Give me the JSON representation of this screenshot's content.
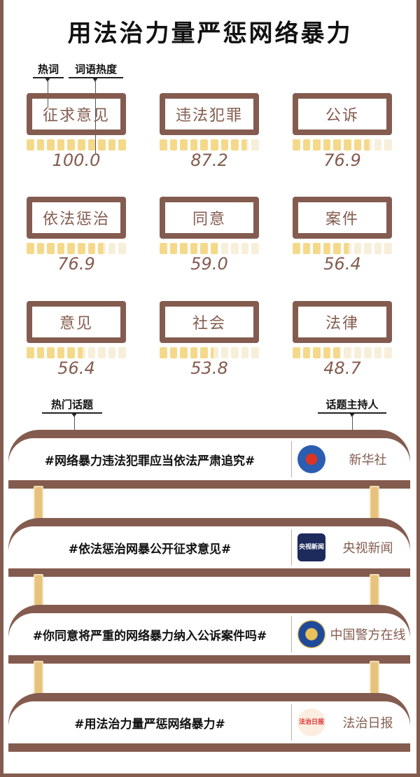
{
  "title": "用法治力量严惩网络暴力",
  "labels": {
    "hot_word": "热词",
    "word_heat": "词语热度",
    "hot_topics": "热门话题",
    "topic_host": "话题主持人"
  },
  "colors": {
    "brown": "#845c4f",
    "bar_filled": "#f5d98a",
    "bar_empty": "#f7efd9"
  },
  "keywords": [
    {
      "word": "征求意见",
      "heat": "100.0",
      "value": 100.0
    },
    {
      "word": "违法犯罪",
      "heat": "87.2",
      "value": 87.2
    },
    {
      "word": "公诉",
      "heat": "76.9",
      "value": 76.9
    },
    {
      "word": "依法惩治",
      "heat": "76.9",
      "value": 76.9
    },
    {
      "word": "同意",
      "heat": "59.0",
      "value": 59.0
    },
    {
      "word": "案件",
      "heat": "56.4",
      "value": 56.4
    },
    {
      "word": "意见",
      "heat": "56.4",
      "value": 56.4
    },
    {
      "word": "社会",
      "heat": "53.8",
      "value": 53.8
    },
    {
      "word": "法律",
      "heat": "48.7",
      "value": 48.7
    }
  ],
  "topics": [
    {
      "topic": "#网络暴力违法犯罪应当依法严肃追究#",
      "host": "新华社",
      "logo": "xinhua-logo"
    },
    {
      "topic": "#依法惩治网暴公开征求意见#",
      "host": "央视新闻",
      "logo": "cctv-news-logo",
      "logo_text": "央视新闻"
    },
    {
      "topic": "#你同意将严重的网络暴力纳入公诉案件吗#",
      "host": "中国警方在线",
      "logo": "police-badge-logo"
    },
    {
      "topic": "#用法治力量严惩网络暴力#",
      "host": "法治日报",
      "logo": "legal-daily-logo",
      "logo_text": "法治日报"
    }
  ]
}
